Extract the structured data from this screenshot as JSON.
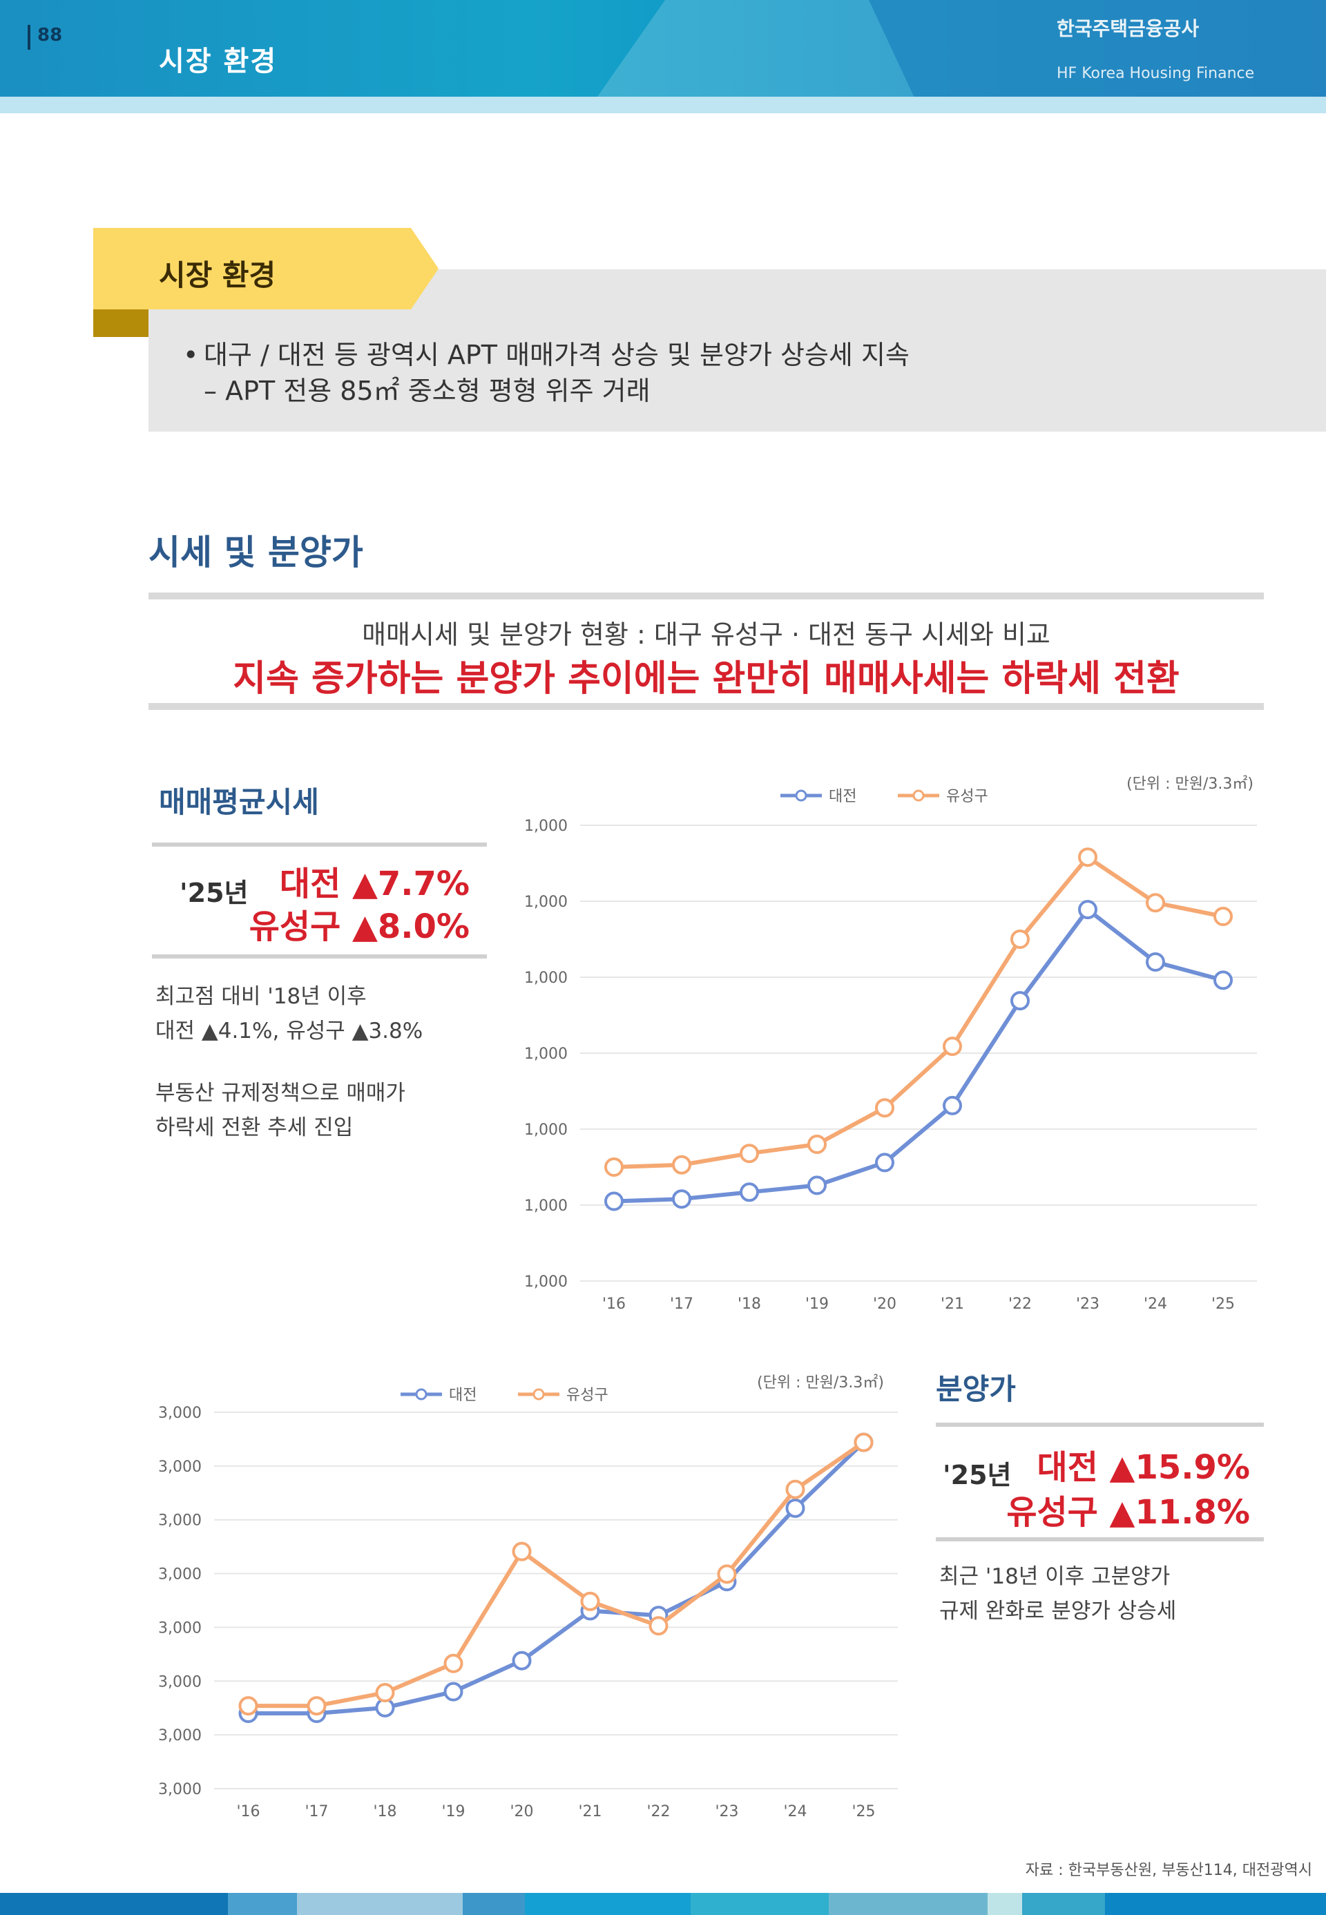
{
  "header": {
    "page_number": "88",
    "title": "시장 환경",
    "brand_line1": "한국주택금융공사",
    "brand_line2": "HF Korea Housing Finance"
  },
  "summary": {
    "tab_title": "시장 환경",
    "line1": "대구 / 대전 등 광역시 APT 매매가격 상승 및 분양가 상승세 지속",
    "line2": "– APT 전용 85㎡ 중소형 평형 위주 거래"
  },
  "section": {
    "title": "시세 및 분양가",
    "headline1": "매매시세 및 분양가 현황 : 대구 유성구 · 대전 동구 시세와 비교",
    "headline2": "지속 증가하는 분양가 추이에는 완만히 매매사세는 하락세 전환"
  },
  "panel_price": {
    "title": "매매평균시세",
    "label": "'25년",
    "stat1": "대전 ▲7.7%",
    "stat2": "유성구 ▲8.0%",
    "note1": "최고점 대비 '18년 이후",
    "note2": "대전 ▲4.1%, 유성구 ▲3.8%",
    "note3": "부동산 규제정책으로 매매가",
    "note4": "하락세 전환 추세 진입"
  },
  "panel_sale": {
    "title": "분양가",
    "label": "'25년",
    "stat1": "대전 ▲15.9%",
    "stat2": "유성구 ▲11.8%",
    "note1": "최근 '18년 이후 고분양가",
    "note2": "규제 완화로 분양가 상승세"
  },
  "colors": {
    "series_blue": "#6f8fd6",
    "series_orange": "#f5a872",
    "accent_red": "#d6212c"
  },
  "chart_data": [
    {
      "type": "line",
      "unit": "(단위 : 만원/3.3㎡)",
      "x": [
        "'16",
        "'17",
        "'18",
        "'19",
        "'20",
        "'21",
        "'22",
        "'23",
        "'24",
        "'25"
      ],
      "series": [
        {
          "name": "대전",
          "values": [
            1350,
            1360,
            1390,
            1420,
            1520,
            1770,
            2230,
            2630,
            2400,
            2320
          ]
        },
        {
          "name": "유성구",
          "values": [
            1500,
            1510,
            1560,
            1600,
            1760,
            2030,
            2500,
            2860,
            2660,
            2600
          ]
        }
      ],
      "yticks": [
        "1,000",
        "1,000",
        "1,000",
        "1,000",
        "1,000",
        "1,000",
        "1,000"
      ],
      "ylim": [
        1000,
        3000
      ]
    },
    {
      "type": "line",
      "unit": "(단위 : 만원/3.3㎡)",
      "x": [
        "'16",
        "'17",
        "'18",
        "'19",
        "'20",
        "'21",
        "'22",
        "'23",
        "'24",
        "'25"
      ],
      "series": [
        {
          "name": "대전",
          "values": [
            800,
            800,
            860,
            1030,
            1360,
            1890,
            1840,
            2200,
            2980,
            3680
          ]
        },
        {
          "name": "유성구",
          "values": [
            880,
            880,
            1020,
            1330,
            2520,
            1990,
            1730,
            2280,
            3180,
            3680
          ]
        }
      ],
      "yticks": [
        "3,000",
        "3,000",
        "3,000",
        "3,000",
        "3,000",
        "3,000",
        "3,000",
        "3,000"
      ],
      "ylim": [
        0,
        4000
      ]
    }
  ],
  "source": "자료 : 한국부동산원, 부동산114, 대전광역시"
}
